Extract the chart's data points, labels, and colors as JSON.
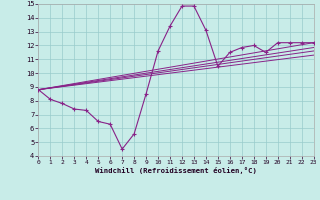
{
  "background_color": "#c8ece8",
  "grid_color": "#99cccc",
  "line_color": "#882288",
  "xlabel": "Windchill (Refroidissement éolien,°C)",
  "xlim": [
    0,
    23
  ],
  "ylim": [
    4,
    15
  ],
  "xticks": [
    0,
    1,
    2,
    3,
    4,
    5,
    6,
    7,
    8,
    9,
    10,
    11,
    12,
    13,
    14,
    15,
    16,
    17,
    18,
    19,
    20,
    21,
    22,
    23
  ],
  "yticks": [
    4,
    5,
    6,
    7,
    8,
    9,
    10,
    11,
    12,
    13,
    14,
    15
  ],
  "curve_x": [
    0,
    1,
    2,
    3,
    4,
    5,
    6,
    7,
    8,
    9,
    10,
    11,
    12,
    13,
    14,
    15,
    16,
    17,
    18,
    19,
    20,
    21,
    22,
    23
  ],
  "curve_y": [
    8.8,
    8.1,
    7.8,
    7.4,
    7.3,
    6.5,
    6.3,
    4.5,
    5.6,
    8.5,
    11.6,
    13.4,
    14.85,
    14.85,
    13.1,
    10.5,
    11.5,
    11.85,
    12.0,
    11.5,
    12.2,
    12.2,
    12.2,
    12.2
  ],
  "straight_lines": [
    [
      8.8,
      11.3
    ],
    [
      8.8,
      11.6
    ],
    [
      8.8,
      11.85
    ],
    [
      8.8,
      12.2
    ]
  ]
}
